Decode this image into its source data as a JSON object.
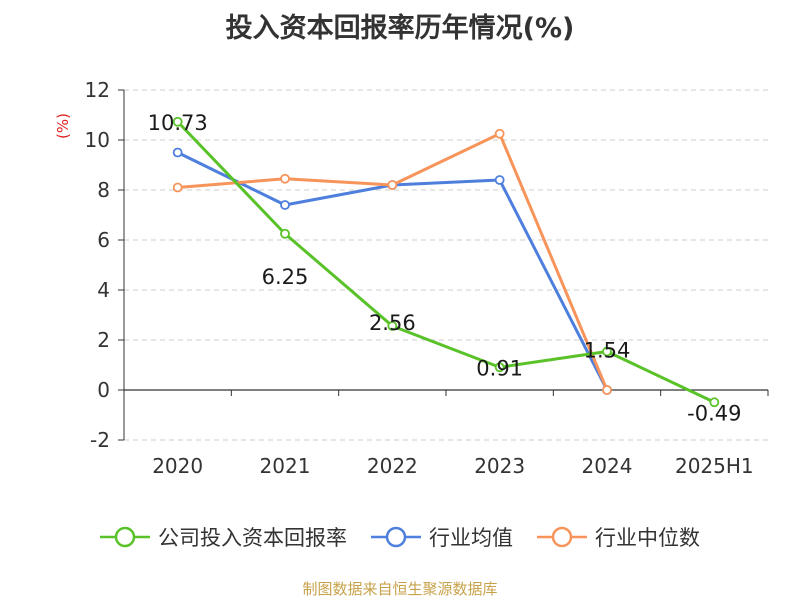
{
  "chart_data": {
    "type": "line",
    "title": "投入资本回报率历年情况(%)",
    "ylabel": "(%)",
    "xlabel": "",
    "categories": [
      "2020",
      "2021",
      "2022",
      "2023",
      "2024",
      "2025H1"
    ],
    "ylim": [
      -2,
      12
    ],
    "yticks": [
      -2,
      0,
      2,
      4,
      6,
      8,
      10,
      12
    ],
    "grid": true,
    "legend_position": "bottom",
    "series": [
      {
        "name": "公司投入资本回报率",
        "color": "#5ac229",
        "values": [
          10.73,
          6.25,
          2.56,
          0.91,
          1.54,
          -0.49
        ],
        "labels": [
          "10.73",
          "6.25",
          "2.56",
          "0.91",
          "1.54",
          "-0.49"
        ]
      },
      {
        "name": "行业均值",
        "color": "#4e7fdc",
        "values": [
          9.5,
          7.4,
          8.2,
          8.4,
          0.0,
          null
        ]
      },
      {
        "name": "行业中位数",
        "color": "#f7945a",
        "values": [
          8.1,
          8.45,
          8.2,
          10.25,
          0.0,
          null
        ]
      }
    ]
  },
  "source_note": "制图数据来自恒生聚源数据库"
}
